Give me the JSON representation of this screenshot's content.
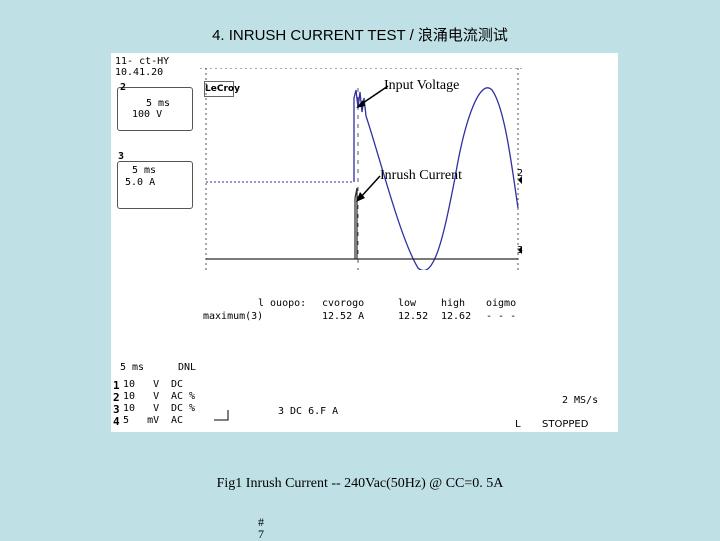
{
  "title": "4.  INRUSH CURRENT TEST / 浪涌电流测试",
  "scope": {
    "date": "11- ct-HY",
    "time": "10.41.20",
    "logo": "LeCroy",
    "ch2_marker": "2",
    "ch3_marker": "3",
    "ch2_box": {
      "line1": "5 ms",
      "line2": "100 V"
    },
    "ch3_box": {
      "line1": "5 ms",
      "line2": "5.0 A"
    },
    "right_label_top": "2",
    "right_label_bottom": "3",
    "measure_headers": [
      "l ouopo:",
      "cvorogo",
      "low",
      "high",
      "oigmo"
    ],
    "measure_row_label": "maximum(3)",
    "measure_values": [
      "12.52 A",
      "12.52",
      "12.62",
      "- - -"
    ],
    "timebase": "5 ms",
    "mode": "DNL",
    "channels": [
      {
        "num": "1",
        "volts": "10   V",
        "coupling": "DC"
      },
      {
        "num": "2",
        "volts": "10   V",
        "coupling": "AC %"
      },
      {
        "num": "3",
        "volts": "10   V",
        "coupling": "DC %"
      },
      {
        "num": "4",
        "volts": "5   mV",
        "coupling": "AC"
      }
    ],
    "trigger": "3 DC 6.F A",
    "sample_rate": "2 MS/s",
    "status": "STOPPED"
  },
  "annotations": {
    "voltage": "Input Voltage",
    "current": "Inrush Current"
  },
  "caption": "Fig1  Inrush Current  -- 240Vac(50Hz) @ CC=0. 5A",
  "footer": {
    "line1": "#",
    "line2": "7"
  },
  "colors": {
    "background": "#bfe1e6",
    "voltage_trace": "#3030a0",
    "current_trace": "#2a2a2a",
    "grid": "#555555"
  }
}
